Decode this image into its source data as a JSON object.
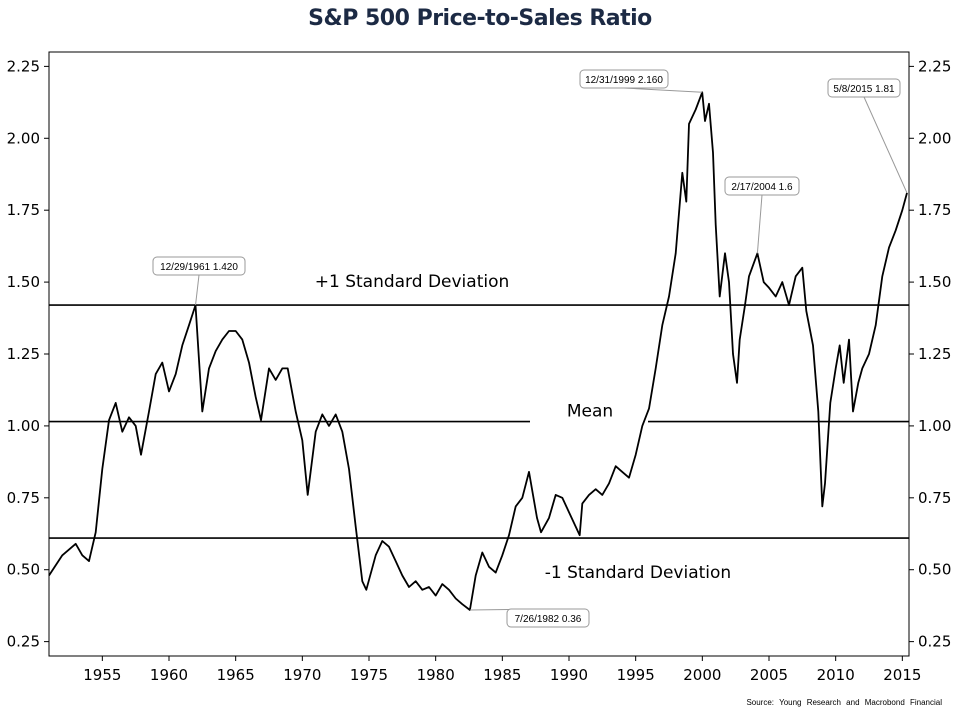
{
  "chart_data": {
    "type": "line",
    "title": "S&P 500 Price-to-Sales Ratio",
    "source": "Source: Young Research and Macrobond Financial",
    "xlim": [
      1951,
      2015.5
    ],
    "ylim": [
      0.2,
      2.3
    ],
    "x_ticks": [
      1955,
      1960,
      1965,
      1970,
      1975,
      1980,
      1985,
      1990,
      1995,
      2000,
      2005,
      2010,
      2015
    ],
    "y_ticks": [
      0.25,
      0.5,
      0.75,
      1.0,
      1.25,
      1.5,
      1.75,
      2.0,
      2.25
    ],
    "y_tick_labels": [
      "0.25",
      "0.50",
      "0.75",
      "1.00",
      "1.25",
      "1.50",
      "1.75",
      "2.00",
      "2.25"
    ],
    "reference_lines": [
      {
        "label": "+1 Standard Deviation",
        "value": 1.42
      },
      {
        "label": "Mean",
        "value": 1.015
      },
      {
        "label": "-1 Standard Deviation",
        "value": 0.61
      }
    ],
    "annotations": [
      {
        "text": "12/29/1961 1.420",
        "x": 1961.99,
        "y": 1.42
      },
      {
        "text": "7/26/1982 0.36",
        "x": 1982.57,
        "y": 0.36
      },
      {
        "text": "12/31/1999 2.160",
        "x": 1999.99,
        "y": 2.16
      },
      {
        "text": "2/17/2004 1.6",
        "x": 2004.13,
        "y": 1.6
      },
      {
        "text": "5/8/2015 1.81",
        "x": 2015.35,
        "y": 1.81
      }
    ],
    "series": [
      {
        "x": [
          1951.0,
          1952.0,
          1953.0,
          1953.5,
          1954.0,
          1954.5,
          1955.0,
          1955.5,
          1956.0,
          1956.5,
          1957.0,
          1957.5,
          1957.9,
          1958.5,
          1959.0,
          1959.5,
          1960.0,
          1960.5,
          1961.0,
          1961.5,
          1961.99,
          1962.5,
          1963.0,
          1963.5,
          1964.0,
          1964.5,
          1965.0,
          1965.5,
          1966.0,
          1966.5,
          1966.9,
          1967.5,
          1968.0,
          1968.5,
          1968.9,
          1969.5,
          1970.0,
          1970.4,
          1971.0,
          1971.5,
          1972.0,
          1972.5,
          1973.0,
          1973.5,
          1974.0,
          1974.5,
          1974.8,
          1975.5,
          1976.0,
          1976.5,
          1977.0,
          1977.5,
          1978.0,
          1978.5,
          1979.0,
          1979.5,
          1980.0,
          1980.5,
          1981.0,
          1981.5,
          1982.0,
          1982.57,
          1983.0,
          1983.5,
          1984.0,
          1984.5,
          1985.0,
          1985.5,
          1986.0,
          1986.5,
          1987.0,
          1987.6,
          1987.9,
          1988.5,
          1989.0,
          1989.5,
          1990.0,
          1990.8,
          1991.0,
          1991.5,
          1992.0,
          1992.5,
          1993.0,
          1993.5,
          1994.0,
          1994.5,
          1995.0,
          1995.5,
          1996.0,
          1996.5,
          1997.0,
          1997.5,
          1998.0,
          1998.5,
          1998.8,
          1999.0,
          1999.5,
          1999.99,
          2000.2,
          2000.5,
          2000.8,
          2001.0,
          2001.3,
          2001.7,
          2002.0,
          2002.3,
          2002.6,
          2002.8,
          2003.2,
          2003.5,
          2004.13,
          2004.6,
          2005.0,
          2005.5,
          2006.0,
          2006.5,
          2007.0,
          2007.5,
          2007.8,
          2008.3,
          2008.7,
          2009.0,
          2009.2,
          2009.6,
          2010.0,
          2010.3,
          2010.6,
          2011.0,
          2011.3,
          2011.7,
          2012.0,
          2012.5,
          2013.0,
          2013.5,
          2014.0,
          2014.5,
          2015.0,
          2015.35
        ],
        "y": [
          0.48,
          0.55,
          0.59,
          0.55,
          0.53,
          0.63,
          0.85,
          1.02,
          1.08,
          0.98,
          1.03,
          1.0,
          0.9,
          1.05,
          1.18,
          1.22,
          1.12,
          1.18,
          1.28,
          1.35,
          1.42,
          1.05,
          1.2,
          1.26,
          1.3,
          1.33,
          1.33,
          1.3,
          1.22,
          1.1,
          1.02,
          1.2,
          1.16,
          1.2,
          1.2,
          1.05,
          0.95,
          0.76,
          0.98,
          1.04,
          1.0,
          1.04,
          0.98,
          0.85,
          0.65,
          0.46,
          0.43,
          0.55,
          0.6,
          0.58,
          0.53,
          0.48,
          0.44,
          0.46,
          0.43,
          0.44,
          0.41,
          0.45,
          0.43,
          0.4,
          0.38,
          0.36,
          0.48,
          0.56,
          0.51,
          0.49,
          0.55,
          0.62,
          0.72,
          0.75,
          0.84,
          0.68,
          0.63,
          0.68,
          0.76,
          0.75,
          0.7,
          0.62,
          0.73,
          0.76,
          0.78,
          0.76,
          0.8,
          0.86,
          0.84,
          0.82,
          0.9,
          1.0,
          1.06,
          1.2,
          1.35,
          1.45,
          1.6,
          1.88,
          1.78,
          2.05,
          2.1,
          2.16,
          2.06,
          2.12,
          1.95,
          1.7,
          1.45,
          1.6,
          1.5,
          1.25,
          1.15,
          1.3,
          1.42,
          1.52,
          1.6,
          1.5,
          1.48,
          1.45,
          1.5,
          1.42,
          1.52,
          1.55,
          1.4,
          1.28,
          1.05,
          0.72,
          0.8,
          1.08,
          1.2,
          1.28,
          1.15,
          1.3,
          1.05,
          1.15,
          1.2,
          1.25,
          1.35,
          1.52,
          1.62,
          1.68,
          1.75,
          1.81
        ]
      }
    ]
  }
}
